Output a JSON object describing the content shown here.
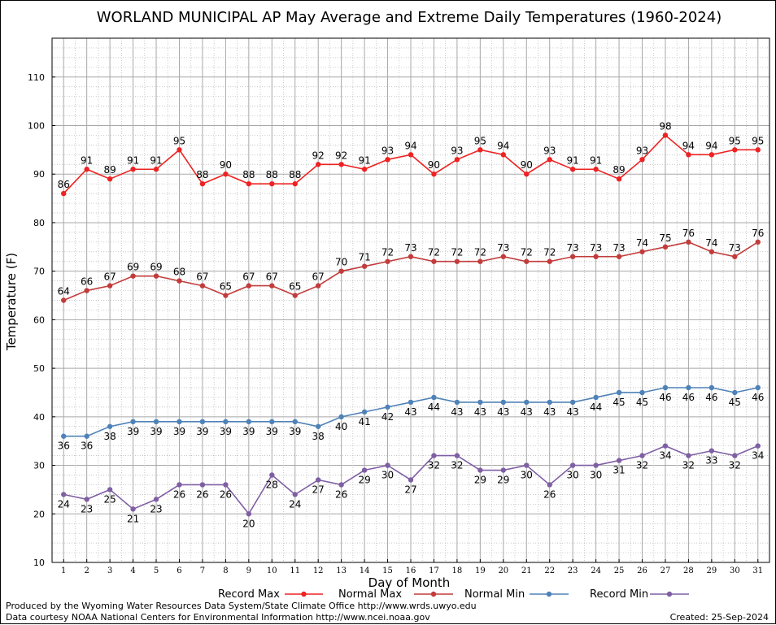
{
  "chart_data": {
    "type": "line",
    "title": "WORLAND MUNICIPAL AP May Average and Extreme Daily Temperatures (1960-2024)",
    "xlabel": "Day of Month",
    "ylabel": "Temperature (F)",
    "x": [
      1,
      2,
      3,
      4,
      5,
      6,
      7,
      8,
      9,
      10,
      11,
      12,
      13,
      14,
      15,
      16,
      17,
      18,
      19,
      20,
      21,
      22,
      23,
      24,
      25,
      26,
      27,
      28,
      29,
      30,
      31
    ],
    "ylim": [
      10,
      118
    ],
    "yticks": [
      10,
      20,
      30,
      40,
      50,
      60,
      70,
      80,
      90,
      100,
      110
    ],
    "grid": true,
    "legend_position": "bottom",
    "series": [
      {
        "name": "Record Max",
        "color": "#ee2222",
        "label_position": "above",
        "values": [
          86,
          91,
          89,
          91,
          91,
          95,
          88,
          90,
          88,
          88,
          88,
          92,
          92,
          91,
          93,
          94,
          90,
          93,
          95,
          94,
          90,
          93,
          91,
          91,
          89,
          93,
          98,
          94,
          94,
          95,
          95
        ]
      },
      {
        "name": "Normal Max",
        "color": "#c23c3c",
        "label_position": "above",
        "values": [
          64,
          66,
          67,
          69,
          69,
          68,
          67,
          65,
          67,
          67,
          65,
          67,
          70,
          71,
          72,
          73,
          72,
          72,
          72,
          73,
          72,
          72,
          73,
          73,
          73,
          74,
          75,
          76,
          74,
          73,
          76
        ]
      },
      {
        "name": "Normal Min",
        "color": "#4f82b8",
        "label_position": "below",
        "values": [
          36,
          36,
          38,
          39,
          39,
          39,
          39,
          39,
          39,
          39,
          39,
          38,
          40,
          41,
          42,
          43,
          44,
          43,
          43,
          43,
          43,
          43,
          43,
          44,
          45,
          45,
          46,
          46,
          46,
          45,
          46
        ]
      },
      {
        "name": "Record Min",
        "color": "#7f5fa3",
        "label_position": "below",
        "values": [
          24,
          23,
          25,
          21,
          23,
          26,
          26,
          26,
          20,
          28,
          24,
          27,
          26,
          29,
          30,
          27,
          32,
          32,
          29,
          29,
          30,
          26,
          30,
          30,
          31,
          32,
          34,
          32,
          33,
          32,
          34
        ]
      }
    ]
  },
  "footer": {
    "produced_by": "Produced by the Wyoming Water Resources Data System/State Climate Office http://www.wrds.uwyo.edu",
    "data_courtesy": "Data courtesy NOAA National Centers for Environmental Information http://www.ncei.noaa.gov",
    "created": "Created:  25-Sep-2024"
  }
}
